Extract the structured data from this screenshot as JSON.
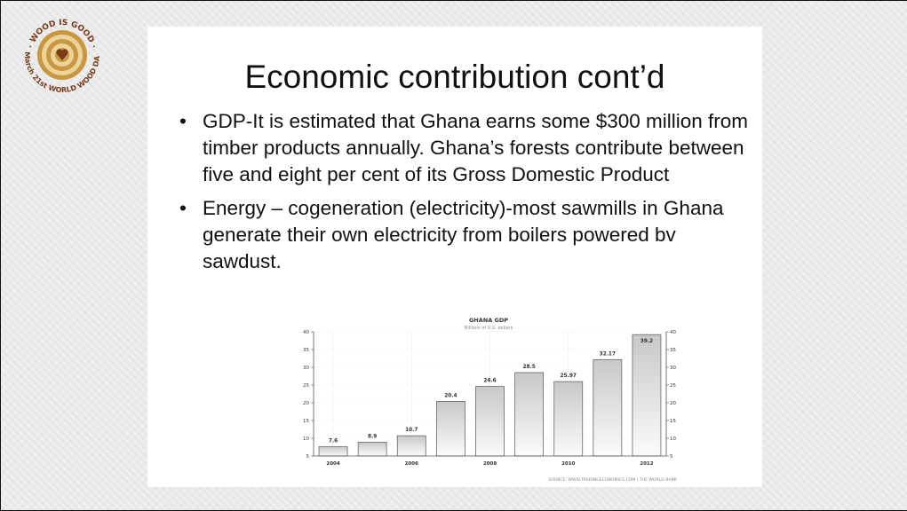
{
  "logo": {
    "top_text": "· WOOD IS GOOD ·",
    "bottom_text": "March 21st WORLD WOOD DAY",
    "colors": {
      "ring_dark": "#c9973f",
      "ring_light": "#ecd39a",
      "heart": "#7a3a1a",
      "text": "#7a3a1a"
    }
  },
  "slide": {
    "title": "Economic contribution cont’d",
    "bullets": [
      "GDP-It is estimated that Ghana earns some $300 million from timber products annually. Ghana’s forests contribute between five and eight per cent of its Gross Domestic Product",
      "Energy – cogeneration (electricity)-most sawmills in Ghana generate their own electricity from boilers powered bv sawdust."
    ]
  },
  "chart_data": {
    "type": "bar",
    "title": "GHANA GDP",
    "subtitle": "Billions of U.S. dollars",
    "categories": [
      "2004",
      "2005",
      "2006",
      "2007",
      "2008",
      "2009",
      "2010",
      "2011",
      "2012"
    ],
    "values": [
      7.6,
      8.9,
      10.7,
      20.4,
      24.6,
      28.5,
      25.97,
      32.17,
      39.2
    ],
    "data_labels": [
      "7.6",
      "8.9",
      "10.7",
      "20.4",
      "24.6",
      "28.5",
      "25.97",
      "32.17",
      "39.2"
    ],
    "x_tick_labels": [
      "2004",
      "2006",
      "2008",
      "2010",
      "2012"
    ],
    "y_ticks": [
      5,
      10,
      15,
      20,
      25,
      30,
      35,
      40
    ],
    "ylim": [
      5,
      40
    ],
    "grid": true,
    "dual_y_axis": true,
    "source": "SOURCE: WWW.TRADINGECONOMICS.COM | THE WORLD BANK"
  }
}
